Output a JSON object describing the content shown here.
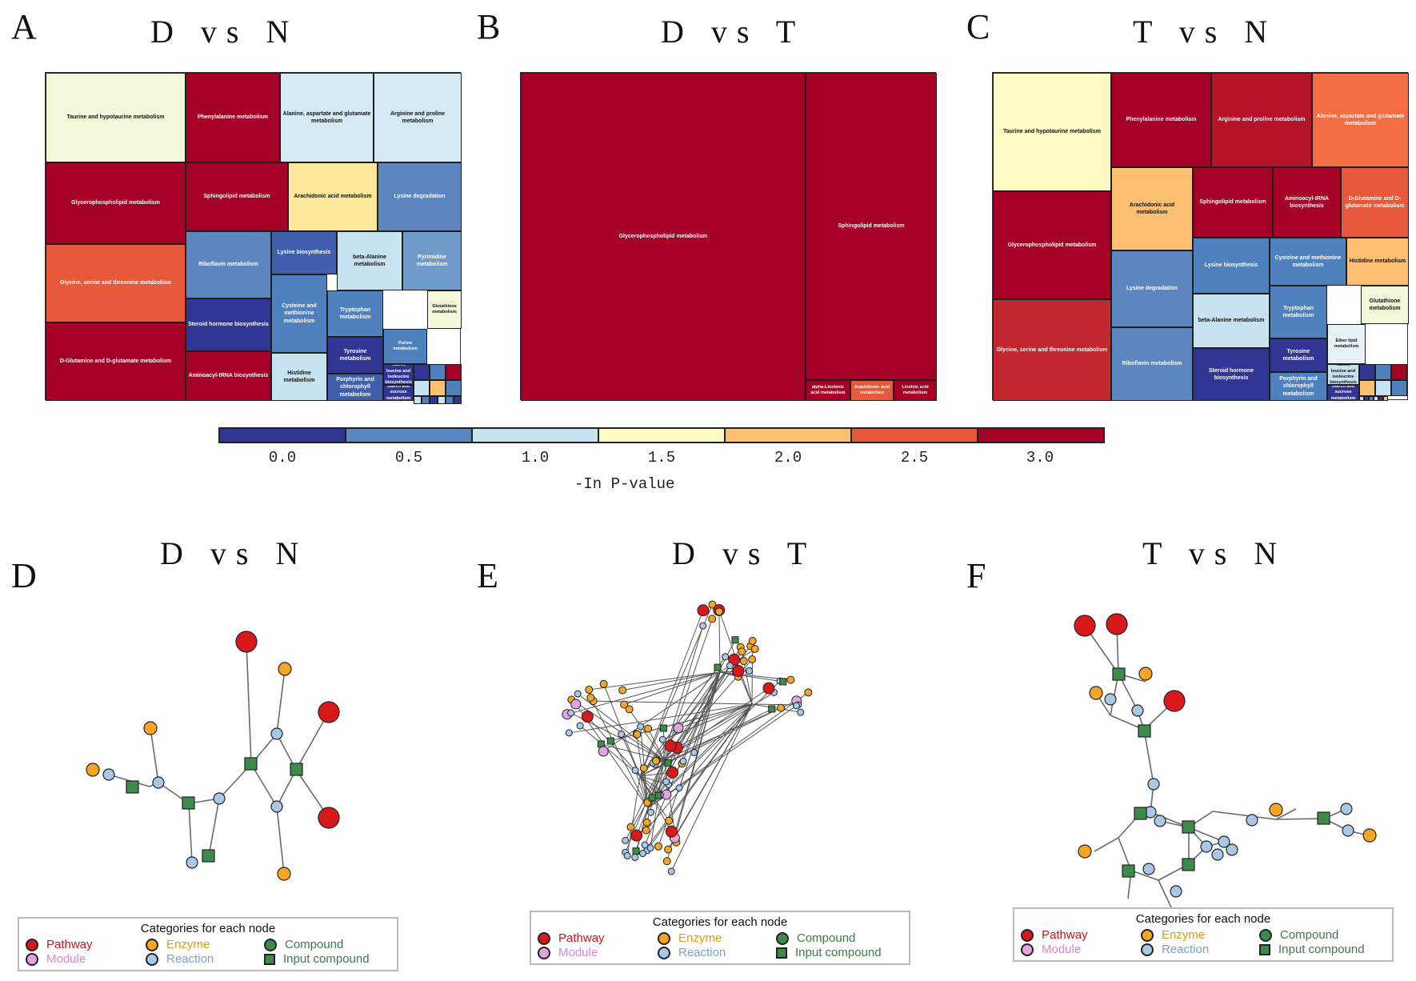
{
  "panels_top": [
    {
      "letter": "A",
      "title": "D vs N"
    },
    {
      "letter": "B",
      "title": "D vs T"
    },
    {
      "letter": "C",
      "title": "T vs N"
    }
  ],
  "panels_bottom": [
    {
      "letter": "D",
      "title": "D vs N"
    },
    {
      "letter": "E",
      "title": "D vs T"
    },
    {
      "letter": "F",
      "title": "T vs N"
    }
  ],
  "colors": {
    "c0": "#313695",
    "c05": "#4f81be",
    "c1": "#c6e3ef",
    "c15": "#fefac4",
    "c2": "#fdbf71",
    "c25": "#e8583b",
    "c3": "#a50026",
    "pathway": "#d7191c",
    "module": "#e3a4e0",
    "enzyme": "#f5a623",
    "reaction": "#a9c8e8",
    "compound": "#3d8a4a",
    "input": "#3d8a4a"
  },
  "colorbar": {
    "ticks": [
      "0.0",
      "0.5",
      "1.0",
      "1.5",
      "2.0",
      "2.5",
      "3.0"
    ],
    "label": "-In P-value",
    "segments": [
      "#313695",
      "#5b86c0",
      "#c6e3ef",
      "#fefac4",
      "#fdbf71",
      "#e8583b",
      "#a50026"
    ]
  },
  "treemap_A": [
    {
      "label": "Taurine and hypotaurine metabolism",
      "color": "#f2f8da"
    },
    {
      "label": "Phenylalanine metabolism",
      "color": "#a50026"
    },
    {
      "label": "Alanine, aspartate and glutamate metabolism",
      "color": "#d6eaf3"
    },
    {
      "label": "Arginine and proline metabolism",
      "color": "#d6eaf3"
    },
    {
      "label": "Glycerophospholipid metabolism",
      "color": "#a50026"
    },
    {
      "label": "Sphingolipid metabolism",
      "color": "#a50026"
    },
    {
      "label": "Arachidonic acid metabolism",
      "color": "#fde99c"
    },
    {
      "label": "Lysine degradation",
      "color": "#5b86c0"
    },
    {
      "label": "Glycine, serine and threonine metabolism",
      "color": "#e8583b"
    },
    {
      "label": "Riboflavin metabolism",
      "color": "#5b86c0"
    },
    {
      "label": "Lysine biosynthesis",
      "color": "#4060ad"
    },
    {
      "label": "beta-Alanine metabolism",
      "color": "#c6e3ef"
    },
    {
      "label": "Pyrimidine metabolism",
      "color": "#6f9bca"
    },
    {
      "label": "D-Glutamine and D-glutamate metabolism",
      "color": "#a50026"
    },
    {
      "label": "Steroid hormone biosynthesis",
      "color": "#313695"
    },
    {
      "label": "Cysteine and methionine metabolism",
      "color": "#4f81be"
    },
    {
      "label": "Tryptophan metabolism",
      "color": "#4f81be"
    },
    {
      "label": "Glutathione metabolism",
      "color": "#f2f8da"
    },
    {
      "label": "Aminoacyl-tRNA biosynthesis",
      "color": "#a50026"
    },
    {
      "label": "Histidine metabolism",
      "color": "#c6e3ef"
    },
    {
      "label": "Tyrosine metabolism",
      "color": "#313695"
    },
    {
      "label": "Purine metabolism",
      "color": "#4f81be"
    },
    {
      "label": "Porphyrin and chlorophyll metabolism",
      "color": "#4060ad"
    },
    {
      "label": "Valine, leucine and isoleucine biosynthesis",
      "color": "#313695"
    },
    {
      "label": "Starch and sucrose metabolism",
      "color": "#313695"
    }
  ],
  "treemap_B": [
    {
      "label": "Glycerophospholipid metabolism",
      "color": "#a50026"
    },
    {
      "label": "Sphingolipid metabolism",
      "color": "#a50026"
    },
    {
      "label": "alpha-Linolenic acid metabolism",
      "color": "#a50026"
    },
    {
      "label": "Arachidonic acid metabolism",
      "color": "#e8583b"
    },
    {
      "label": "Linoleic acid metabolism",
      "color": "#a50026"
    }
  ],
  "treemap_C": [
    {
      "label": "Taurine and hypotaurine metabolism",
      "color": "#fefac4"
    },
    {
      "label": "Phenylalanine metabolism",
      "color": "#a50026"
    },
    {
      "label": "Arginine and proline metabolism",
      "color": "#b5142a"
    },
    {
      "label": "Alanine, aspartate and glutamate metabolism",
      "color": "#f46d43"
    },
    {
      "label": "Glycerophospholipid metabolism",
      "color": "#a50026"
    },
    {
      "label": "Arachidonic acid metabolism",
      "color": "#fdbf71"
    },
    {
      "label": "Sphingolipid metabolism",
      "color": "#a50026"
    },
    {
      "label": "Aminoacyl-tRNA biosynthesis",
      "color": "#a50026"
    },
    {
      "label": "D-Glutamine and D-glutamate metabolism",
      "color": "#e8583b"
    },
    {
      "label": "Lysine biosynthesis",
      "color": "#4f81be"
    },
    {
      "label": "Cysteine and methionine metabolism",
      "color": "#4f81be"
    },
    {
      "label": "Histidine metabolism",
      "color": "#fdbf71"
    },
    {
      "label": "Glycine, serine and threonine metabolism",
      "color": "#c1272d"
    },
    {
      "label": "Lysine degradation",
      "color": "#5b86c0"
    },
    {
      "label": "beta-Alanine metabolism",
      "color": "#c6e3ef"
    },
    {
      "label": "Tryptophan metabolism",
      "color": "#4f81be"
    },
    {
      "label": "Glutathione metabolism",
      "color": "#f2f8da"
    },
    {
      "label": "Riboflavin metabolism",
      "color": "#5b86c0"
    },
    {
      "label": "Steroid hormone biosynthesis",
      "color": "#313695"
    },
    {
      "label": "Tyrosine metabolism",
      "color": "#313695"
    },
    {
      "label": "Ether lipid metabolism",
      "color": "#e6f2f8"
    },
    {
      "label": "Porphyrin and chlorophyll metabolism",
      "color": "#4f81be"
    },
    {
      "label": "Valine, leucine and isoleucine biosynthesis",
      "color": "#c6e3ef"
    },
    {
      "label": "Starch and sucrose metabolism",
      "color": "#313695"
    }
  ],
  "legend": {
    "title": "Categories for each node",
    "pathway": "Pathway",
    "module": "Module",
    "enzyme": "Enzyme",
    "reaction": "Reaction",
    "compound": "Compound",
    "input": "Input compound"
  }
}
